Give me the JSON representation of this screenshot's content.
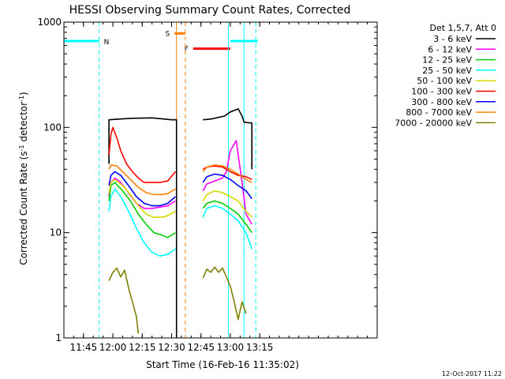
{
  "chart_data": {
    "type": "line",
    "title": "HESSI Observing Summary Count Rates, Corrected",
    "xlabel": "Start Time (16-Feb-16 11:35:02)",
    "ylabel_main": "Corrected Count Rate (s",
    "ylabel_sup1": "-1",
    "ylabel_mid": " detector",
    "ylabel_sup2": "-1",
    "ylabel_end": ")",
    "yscale": "log",
    "ylim": [
      1,
      1000
    ],
    "xlim_minutes": [
      35,
      195
    ],
    "x_ticks": [
      {
        "label": "11:45",
        "minutes": 45
      },
      {
        "label": "12:00",
        "minutes": 60
      },
      {
        "label": "12:15",
        "minutes": 75
      },
      {
        "label": "12:30",
        "minutes": 90
      },
      {
        "label": "12:45",
        "minutes": 105
      },
      {
        "label": "13:00",
        "minutes": 120
      },
      {
        "label": "13:15",
        "minutes": 135
      }
    ],
    "y_ticks": [
      {
        "label": "1",
        "value": 1
      },
      {
        "label": "10",
        "value": 10
      },
      {
        "label": "100",
        "value": 100
      },
      {
        "label": "1000",
        "value": 1000
      }
    ],
    "legend_header": "Det 1,5,7, Att 0",
    "legend_placement": "right",
    "series": [
      {
        "name": "3 - 6 keV",
        "color": "#000000",
        "segments": [
          [
            [
              58,
              45
            ],
            [
              58,
              118
            ],
            [
              63,
              120
            ],
            [
              70,
              122
            ],
            [
              80,
              123
            ],
            [
              90,
              118
            ],
            [
              92.5,
              118
            ],
            [
              92.5,
              0
            ]
          ],
          [
            [
              106,
              118
            ],
            [
              110,
              120
            ],
            [
              117,
              128
            ],
            [
              120,
              140
            ],
            [
              124,
              150
            ],
            [
              126,
              128
            ],
            [
              127,
              112
            ],
            [
              131,
              110
            ],
            [
              131,
              40
            ]
          ]
        ]
      },
      {
        "name": "6 - 12 keV",
        "color": "#ff00ff",
        "segments": [
          [
            [
              58,
              22
            ],
            [
              59,
              30
            ],
            [
              61,
              33
            ],
            [
              64,
              30
            ],
            [
              68,
              24
            ],
            [
              72,
              19
            ],
            [
              76,
              17
            ],
            [
              80,
              17
            ],
            [
              84,
              17.5
            ],
            [
              88,
              18
            ],
            [
              92,
              20
            ]
          ],
          [
            [
              106,
              25
            ],
            [
              108,
              29
            ],
            [
              112,
              31
            ],
            [
              116,
              33
            ],
            [
              118,
              38
            ],
            [
              120,
              60
            ],
            [
              123,
              75
            ],
            [
              126,
              30
            ],
            [
              128,
              15
            ],
            [
              131,
              12
            ]
          ]
        ]
      },
      {
        "name": "12 - 25 keV",
        "color": "#00cc00",
        "segments": [
          [
            [
              58,
              20
            ],
            [
              59,
              28
            ],
            [
              61,
              30
            ],
            [
              65,
              25
            ],
            [
              69,
              20
            ],
            [
              73,
              15
            ],
            [
              77,
              12
            ],
            [
              81,
              10
            ],
            [
              85,
              9.5
            ],
            [
              88,
              9
            ],
            [
              92,
              10
            ]
          ],
          [
            [
              106,
              17
            ],
            [
              108,
              19
            ],
            [
              112,
              20
            ],
            [
              116,
              19
            ],
            [
              120,
              17
            ],
            [
              124,
              15
            ],
            [
              128,
              12
            ],
            [
              131,
              10
            ]
          ]
        ]
      },
      {
        "name": "25 - 50 keV",
        "color": "#00ffff",
        "segments": [
          [
            [
              58,
              16
            ],
            [
              59,
              22
            ],
            [
              61,
              26
            ],
            [
              64,
              22
            ],
            [
              68,
              16
            ],
            [
              72,
              11
            ],
            [
              76,
              8
            ],
            [
              80,
              6.5
            ],
            [
              84,
              6
            ],
            [
              88,
              6.2
            ],
            [
              92,
              7
            ]
          ],
          [
            [
              106,
              14
            ],
            [
              108,
              17
            ],
            [
              112,
              18
            ],
            [
              116,
              17
            ],
            [
              120,
              15
            ],
            [
              124,
              13
            ],
            [
              128,
              10
            ],
            [
              131,
              7
            ]
          ]
        ]
      },
      {
        "name": "50 - 100 keV",
        "color": "#d8d800",
        "segments": [
          [
            [
              58,
              24
            ],
            [
              59,
              30
            ],
            [
              61,
              32
            ],
            [
              65,
              28
            ],
            [
              69,
              23
            ],
            [
              73,
              18
            ],
            [
              77,
              15
            ],
            [
              81,
              14
            ],
            [
              85,
              14
            ],
            [
              88,
              14.5
            ],
            [
              92,
              16
            ]
          ],
          [
            [
              106,
              20
            ],
            [
              108,
              23
            ],
            [
              112,
              25
            ],
            [
              116,
              24
            ],
            [
              120,
              22
            ],
            [
              124,
              20
            ],
            [
              128,
              16
            ],
            [
              131,
              14
            ]
          ]
        ]
      },
      {
        "name": "100 - 300 keV",
        "color": "#ff0000",
        "segments": [
          [
            [
              58,
              55
            ],
            [
              59,
              85
            ],
            [
              60,
              100
            ],
            [
              62,
              80
            ],
            [
              64,
              60
            ],
            [
              67,
              45
            ],
            [
              70,
              38
            ],
            [
              73,
              33
            ],
            [
              76,
              30
            ],
            [
              80,
              30
            ],
            [
              84,
              30
            ],
            [
              88,
              31
            ],
            [
              92,
              38
            ]
          ],
          [
            [
              106,
              40
            ],
            [
              108,
              42
            ],
            [
              112,
              43
            ],
            [
              116,
              42
            ],
            [
              120,
              38
            ],
            [
              124,
              35
            ],
            [
              128,
              34
            ],
            [
              131,
              32
            ]
          ]
        ]
      },
      {
        "name": "300 - 800 keV",
        "color": "#0000ff",
        "segments": [
          [
            [
              58,
              28
            ],
            [
              59,
              35
            ],
            [
              61,
              38
            ],
            [
              64,
              35
            ],
            [
              68,
              28
            ],
            [
              72,
              22
            ],
            [
              76,
              19
            ],
            [
              80,
              18
            ],
            [
              84,
              18
            ],
            [
              88,
              19
            ],
            [
              92,
              22
            ]
          ],
          [
            [
              106,
              30
            ],
            [
              108,
              34
            ],
            [
              112,
              36
            ],
            [
              116,
              35
            ],
            [
              120,
              32
            ],
            [
              124,
              28
            ],
            [
              128,
              25
            ],
            [
              131,
              21
            ]
          ]
        ]
      },
      {
        "name": "800 - 7000 keV",
        "color": "#ff8000",
        "segments": [
          [
            [
              58,
              40
            ],
            [
              59,
              44
            ],
            [
              62,
              43
            ],
            [
              65,
              38
            ],
            [
              69,
              32
            ],
            [
              73,
              27
            ],
            [
              77,
              24
            ],
            [
              81,
              23
            ],
            [
              85,
              23
            ],
            [
              88,
              23.5
            ],
            [
              92,
              26
            ]
          ],
          [
            [
              106,
              38
            ],
            [
              108,
              42
            ],
            [
              112,
              44
            ],
            [
              116,
              43
            ],
            [
              120,
              40
            ],
            [
              124,
              36
            ],
            [
              128,
              32
            ],
            [
              131,
              30
            ]
          ]
        ]
      },
      {
        "name": "7000 - 20000 keV",
        "color": "#808000",
        "segments": [
          [
            [
              58,
              3.5
            ],
            [
              60,
              4.2
            ],
            [
              62,
              4.6
            ],
            [
              64,
              3.8
            ],
            [
              66,
              4.4
            ],
            [
              68,
              3
            ],
            [
              70,
              2.2
            ],
            [
              72,
              1.6
            ],
            [
              73,
              1.1
            ]
          ],
          [
            [
              106,
              3.7
            ],
            [
              108,
              4.5
            ],
            [
              110,
              4.2
            ],
            [
              112,
              4.7
            ],
            [
              114,
              4.2
            ],
            [
              116,
              4.6
            ],
            [
              118,
              3.8
            ],
            [
              120,
              3.1
            ],
            [
              122,
              2.2
            ],
            [
              124,
              1.5
            ],
            [
              126,
              2.2
            ],
            [
              128,
              1.7
            ]
          ]
        ]
      }
    ],
    "flags": {
      "N_label": "N",
      "S_label": "S",
      "F_label": "F",
      "N_segments": [
        [
          35,
          53
        ],
        [
          120,
          134
        ]
      ],
      "S_segment": [
        91.5,
        97
      ],
      "F_segment": [
        101,
        120
      ],
      "N_level": 660,
      "S_level": 780,
      "F_level": 560,
      "N_color": "#00ffff",
      "S_color": "#ff8000",
      "F_color": "#ff0000"
    },
    "markers": {
      "cyan_solid": [
        35,
        119,
        127
      ],
      "cyan_dashed": [
        53,
        133
      ],
      "orange_solid": [
        92.5
      ],
      "orange_dashed": [
        97
      ]
    },
    "timestamp": "12-Oct-2017 11:22"
  }
}
